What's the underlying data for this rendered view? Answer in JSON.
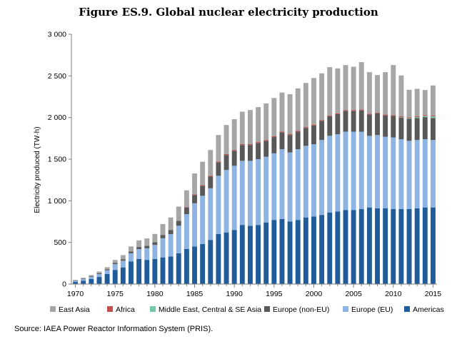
{
  "chart_data": {
    "type": "bar",
    "stacked": true,
    "title": "Figure ES.9. Global nuclear electricity production",
    "ylabel": "Electricity produced (TW·h)",
    "xlabel": "",
    "ylim": [
      0,
      3000
    ],
    "yticks": [
      "0",
      "500",
      "1 000",
      "1 500",
      "2 000",
      "2 500",
      "3 000"
    ],
    "ytick_values": [
      0,
      500,
      1000,
      1500,
      2000,
      2500,
      3000
    ],
    "xticks": [
      "1970",
      "1975",
      "1980",
      "1985",
      "1990",
      "1995",
      "2000",
      "2005",
      "2010",
      "2015"
    ],
    "grid": false,
    "legend_position": "bottom",
    "categories": [
      "1970",
      "1971",
      "1972",
      "1973",
      "1974",
      "1975",
      "1976",
      "1977",
      "1978",
      "1979",
      "1980",
      "1981",
      "1982",
      "1983",
      "1984",
      "1985",
      "1986",
      "1987",
      "1988",
      "1989",
      "1990",
      "1991",
      "1992",
      "1993",
      "1994",
      "1995",
      "1996",
      "1997",
      "1998",
      "1999",
      "2000",
      "2001",
      "2002",
      "2003",
      "2004",
      "2005",
      "2006",
      "2007",
      "2008",
      "2009",
      "2010",
      "2011",
      "2012",
      "2013",
      "2014",
      "2015"
    ],
    "series": [
      {
        "name": "Americas",
        "color": "#1f5c99",
        "values": [
          25,
          40,
          60,
          85,
          120,
          170,
          200,
          270,
          300,
          290,
          300,
          320,
          330,
          370,
          420,
          450,
          480,
          530,
          600,
          620,
          650,
          710,
          700,
          710,
          740,
          770,
          780,
          750,
          770,
          800,
          810,
          830,
          860,
          870,
          890,
          890,
          900,
          920,
          910,
          910,
          900,
          900,
          900,
          910,
          920,
          920
        ]
      },
      {
        "name": "Europe (EU)",
        "color": "#8eb4e3",
        "values": [
          15,
          20,
          25,
          35,
          45,
          70,
          80,
          100,
          120,
          140,
          170,
          230,
          270,
          330,
          420,
          520,
          580,
          620,
          700,
          750,
          770,
          770,
          780,
          790,
          790,
          800,
          840,
          830,
          850,
          860,
          870,
          900,
          920,
          930,
          940,
          940,
          930,
          860,
          880,
          860,
          860,
          840,
          820,
          820,
          820,
          810
        ]
      },
      {
        "name": "Europe (non-EU)",
        "color": "#595959",
        "values": [
          3,
          5,
          8,
          10,
          12,
          15,
          18,
          22,
          25,
          28,
          32,
          40,
          50,
          60,
          80,
          100,
          120,
          140,
          160,
          180,
          180,
          190,
          190,
          195,
          190,
          195,
          200,
          210,
          210,
          215,
          225,
          230,
          235,
          240,
          250,
          250,
          255,
          255,
          260,
          255,
          260,
          260,
          265,
          265,
          265,
          265
        ]
      },
      {
        "name": "Middle East, Central & SE Asia",
        "color": "#76c7a5",
        "values": [
          0,
          0,
          0,
          0,
          0,
          0,
          0,
          0,
          0,
          0,
          0,
          0,
          0,
          0,
          0,
          0,
          0,
          0,
          0,
          0,
          0,
          0,
          0,
          0,
          0,
          0,
          0,
          0,
          0,
          0,
          0,
          0,
          0,
          0,
          0,
          0,
          0,
          0,
          0,
          0,
          0,
          5,
          8,
          10,
          15,
          20
        ]
      },
      {
        "name": "Africa",
        "color": "#c0504d",
        "values": [
          0,
          0,
          0,
          0,
          0,
          0,
          0,
          0,
          0,
          0,
          0,
          0,
          0,
          0,
          5,
          8,
          9,
          10,
          10,
          10,
          10,
          10,
          10,
          10,
          10,
          10,
          10,
          10,
          10,
          10,
          10,
          10,
          10,
          10,
          10,
          10,
          10,
          10,
          10,
          10,
          10,
          10,
          10,
          10,
          10,
          10
        ]
      },
      {
        "name": "East Asia",
        "color": "#a6a6a6",
        "values": [
          7,
          10,
          15,
          20,
          25,
          35,
          50,
          60,
          80,
          90,
          100,
          130,
          150,
          170,
          200,
          250,
          280,
          310,
          320,
          350,
          370,
          390,
          410,
          420,
          440,
          460,
          470,
          480,
          510,
          530,
          560,
          560,
          580,
          540,
          540,
          520,
          570,
          500,
          450,
          510,
          600,
          490,
          330,
          330,
          300,
          360
        ]
      }
    ]
  },
  "legend_order": [
    "East Asia",
    "Africa",
    "Middle East, Central & SE Asia",
    "Europe (non-EU)",
    "Europe (EU)",
    "Americas"
  ],
  "source": "Source: IAEA Power Reactor Information System (PRIS)."
}
